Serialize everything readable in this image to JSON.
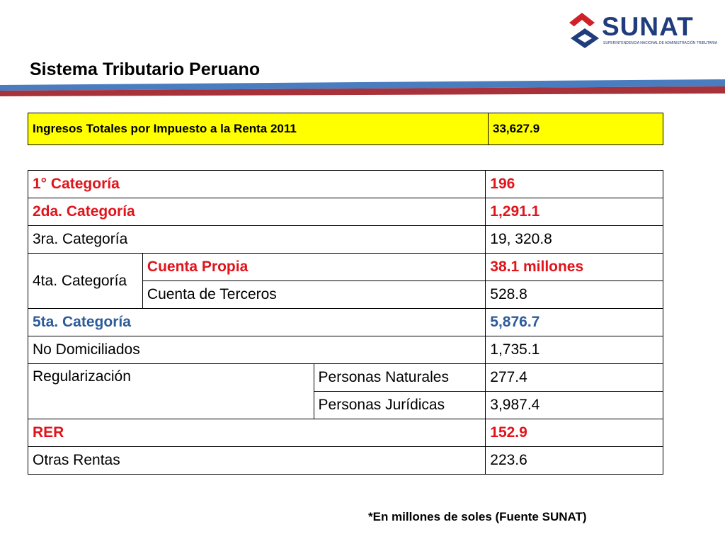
{
  "header": {
    "title": "Sistema Tributario Peruano",
    "logo_text": "SUNAT",
    "logo_subtitle": "SUPERINTENDENCIA NACIONAL DE ADMINISTRACIÓN TRIBUTARIA"
  },
  "colors": {
    "highlight": "#ffff00",
    "red": "#e0141b",
    "blue": "#2e5b9a",
    "stripe_blue": "#4a7cc0",
    "stripe_red": "#a8323a"
  },
  "summary": {
    "label": "Ingresos Totales por Impuesto a la Renta 2011",
    "value": "33,627.9"
  },
  "rows": {
    "cat1": {
      "label": "1° Categoría",
      "value": "196"
    },
    "cat2": {
      "label": "2da. Categoría",
      "value": "1,291.1"
    },
    "cat3": {
      "label": "3ra. Categoría",
      "value": "19, 320.8"
    },
    "cat4": {
      "label": "4ta. Categoría",
      "propia_label": "Cuenta Propia",
      "propia_value": "38.1 millones",
      "terceros_label": "Cuenta de Terceros",
      "terceros_value": "528.8"
    },
    "cat5": {
      "label": "5ta. Categoría",
      "value": "5,876.7"
    },
    "no_domiciliados": {
      "label": "No Domiciliados",
      "value": "1,735.1"
    },
    "regularizacion": {
      "label": "Regularización",
      "naturales_label": "Personas Naturales",
      "naturales_value": "277.4",
      "juridicas_label": "Personas Jurídicas",
      "juridicas_value": "3,987.4"
    },
    "rer": {
      "label": "RER",
      "value": "152.9"
    },
    "otras": {
      "label": "Otras Rentas",
      "value": "223.6"
    }
  },
  "footnote": "*En millones de soles (Fuente SUNAT)"
}
